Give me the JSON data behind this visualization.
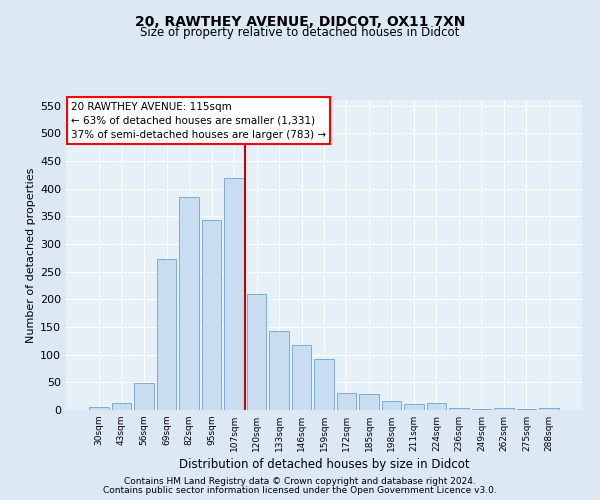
{
  "title1": "20, RAWTHEY AVENUE, DIDCOT, OX11 7XN",
  "title2": "Size of property relative to detached houses in Didcot",
  "xlabel": "Distribution of detached houses by size in Didcot",
  "ylabel": "Number of detached properties",
  "categories": [
    "30sqm",
    "43sqm",
    "56sqm",
    "69sqm",
    "82sqm",
    "95sqm",
    "107sqm",
    "120sqm",
    "133sqm",
    "146sqm",
    "159sqm",
    "172sqm",
    "185sqm",
    "198sqm",
    "211sqm",
    "224sqm",
    "236sqm",
    "249sqm",
    "262sqm",
    "275sqm",
    "288sqm"
  ],
  "values": [
    5,
    12,
    49,
    272,
    384,
    344,
    420,
    210,
    143,
    117,
    92,
    31,
    29,
    17,
    11,
    12,
    3,
    2,
    4,
    1,
    3
  ],
  "bar_color": "#c8ddf0",
  "bar_edge_color": "#7aaed6",
  "vline_index": 7,
  "vline_color": "#cc0000",
  "annotation_title": "20 RAWTHEY AVENUE: 115sqm",
  "annotation_line1": "← 63% of detached houses are smaller (1,331)",
  "annotation_line2": "37% of semi-detached houses are larger (783) →",
  "footnote1": "Contains HM Land Registry data © Crown copyright and database right 2024.",
  "footnote2": "Contains public sector information licensed under the Open Government Licence v3.0.",
  "ylim": [
    0,
    560
  ],
  "yticks": [
    0,
    50,
    100,
    150,
    200,
    250,
    300,
    350,
    400,
    450,
    500,
    550
  ],
  "fig_bg_color": "#dce9f5",
  "plot_bg_color": "#e6f0f8"
}
